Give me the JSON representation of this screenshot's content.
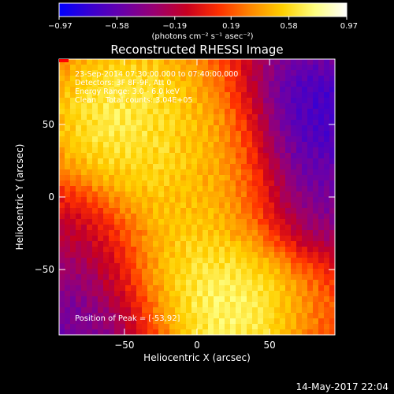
{
  "chart_data": {
    "type": "heatmap",
    "title": "Reconstructed RHESSI Image",
    "xlabel": "Heliocentric X (arcsec)",
    "ylabel": "Heliocentric Y (arcsec)",
    "xlim": [
      -95,
      95
    ],
    "ylim": [
      -95,
      95
    ],
    "x_ticks": [
      -50,
      0,
      50
    ],
    "y_ticks": [
      -50,
      0,
      50
    ],
    "colorbar": {
      "range": [
        -0.97,
        0.97
      ],
      "tick_values": [
        -0.97,
        -0.58,
        -0.19,
        0.19,
        0.58,
        0.97
      ],
      "tick_labels": [
        "−0.97",
        "−0.58",
        "−0.19",
        "0.19",
        "0.58",
        "0.97"
      ],
      "unit_label": "(photons cm⁻² s⁻¹ asec⁻²)"
    },
    "info_lines": [
      "23-Sep-2014 07:30:00.000 to 07:40:00.000",
      "Detectors: 3F 8F-9F, Att 0",
      "Energy Range: 3.0 - 6.0 keV",
      "Clean    Total counts: 3.04E+05"
    ],
    "peak_label": "Position of Peak = [-53,92]",
    "peak_position": [
      -53,
      92
    ],
    "features": [
      {
        "x": -50,
        "y": 55,
        "value": 0.85
      },
      {
        "x": -25,
        "y": 20,
        "value": 0.75
      },
      {
        "x": -15,
        "y": -45,
        "value": 0.9
      },
      {
        "x": 40,
        "y": -80,
        "value": 0.97
      },
      {
        "x": 5,
        "y": 40,
        "value": 0.45
      },
      {
        "x": 10,
        "y": 0,
        "value": 0.35
      },
      {
        "x": 80,
        "y": 55,
        "value": -0.97
      },
      {
        "x": 90,
        "y": 0,
        "value": -0.6
      },
      {
        "x": -85,
        "y": -85,
        "value": -0.7
      },
      {
        "x": -65,
        "y": -40,
        "value": -0.3
      },
      {
        "x": 90,
        "y": -90,
        "value": 0.1
      }
    ],
    "background_value": 0.05,
    "colormap": [
      "#0000ff",
      "#3a00d0",
      "#6a00a8",
      "#9a0070",
      "#c80020",
      "#ff3000",
      "#ff8800",
      "#ffd000",
      "#ffff80",
      "#ffffff"
    ]
  },
  "footer_timestamp": "14-May-2017 22:04"
}
